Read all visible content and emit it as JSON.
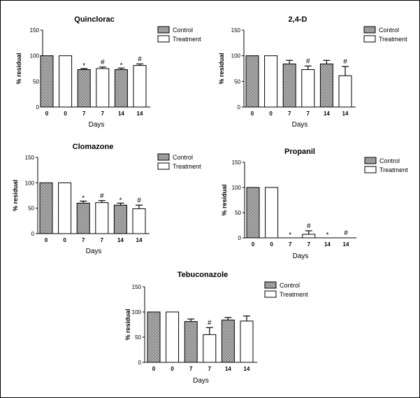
{
  "chart_data": [
    {
      "type": "bar",
      "title": "Quinclorac",
      "xlabel": "Days",
      "ylabel": "% residual",
      "ylim": [
        0,
        150
      ],
      "yticks": [
        0,
        50,
        100,
        150
      ],
      "categories": [
        "0",
        "0",
        "7",
        "7",
        "14",
        "14"
      ],
      "groups": [
        "Control",
        "Treatment",
        "Control",
        "Treatment",
        "Control",
        "Treatment"
      ],
      "values": [
        100,
        100,
        73,
        75,
        73,
        81
      ],
      "errors": [
        0,
        0,
        2,
        3,
        3,
        3
      ],
      "marks": [
        "",
        "",
        "*",
        "#",
        "*",
        "#"
      ],
      "legend": [
        "Control",
        "Treatment"
      ]
    },
    {
      "type": "bar",
      "title": "2,4-D",
      "xlabel": "Days",
      "ylabel": "% residual",
      "ylim": [
        0,
        150
      ],
      "yticks": [
        0,
        50,
        100,
        150
      ],
      "categories": [
        "0",
        "0",
        "7",
        "7",
        "14",
        "14"
      ],
      "groups": [
        "Control",
        "Treatment",
        "Control",
        "Treatment",
        "Control",
        "Treatment"
      ],
      "values": [
        100,
        100,
        84,
        73,
        84,
        61
      ],
      "errors": [
        0,
        0,
        7,
        7,
        7,
        18
      ],
      "marks": [
        "",
        "",
        "",
        "#",
        "",
        "#"
      ],
      "legend": [
        "Control",
        "Treatment"
      ]
    },
    {
      "type": "bar",
      "title": "Clomazone",
      "xlabel": "Days",
      "ylabel": "% residual",
      "ylim": [
        0,
        150
      ],
      "yticks": [
        0,
        50,
        100,
        150
      ],
      "categories": [
        "0",
        "0",
        "7",
        "7",
        "14",
        "14"
      ],
      "groups": [
        "Control",
        "Treatment",
        "Control",
        "Treatment",
        "Control",
        "Treatment"
      ],
      "values": [
        100,
        100,
        60,
        61,
        56,
        49
      ],
      "errors": [
        0,
        0,
        4,
        4,
        4,
        7
      ],
      "marks": [
        "",
        "",
        "*",
        "#",
        "*",
        "#"
      ],
      "legend": [
        "Control",
        "Treatment"
      ]
    },
    {
      "type": "bar",
      "title": "Propanil",
      "xlabel": "Days",
      "ylabel": "% residual",
      "ylim": [
        0,
        150
      ],
      "yticks": [
        0,
        50,
        100,
        150
      ],
      "categories": [
        "0",
        "0",
        "7",
        "7",
        "14",
        "14"
      ],
      "groups": [
        "Control",
        "Treatment",
        "Control",
        "Treatment",
        "Control",
        "Treatment"
      ],
      "values": [
        100,
        100,
        0,
        7,
        0,
        0
      ],
      "errors": [
        0,
        0,
        0,
        7,
        0,
        0
      ],
      "marks": [
        "",
        "",
        "*",
        "#",
        "*",
        "#"
      ],
      "legend": [
        "Control",
        "Treatment"
      ]
    },
    {
      "type": "bar",
      "title": "Tebuconazole",
      "xlabel": "Days",
      "ylabel": "% residual",
      "ylim": [
        0,
        150
      ],
      "yticks": [
        0,
        50,
        100,
        150
      ],
      "categories": [
        "0",
        "0",
        "7",
        "7",
        "14",
        "14"
      ],
      "groups": [
        "Control",
        "Treatment",
        "Control",
        "Treatment",
        "Control",
        "Treatment"
      ],
      "values": [
        100,
        100,
        81,
        55,
        84,
        82
      ],
      "errors": [
        0,
        0,
        5,
        14,
        5,
        10
      ],
      "marks": [
        "",
        "",
        "",
        "#",
        "",
        ""
      ],
      "legend": [
        "Control",
        "Treatment"
      ]
    }
  ],
  "colors": {
    "control_fill": "#8c8c8c",
    "control_hatch": "#bdbdbd",
    "treatment_fill": "#ffffff",
    "stroke": "#000000"
  }
}
